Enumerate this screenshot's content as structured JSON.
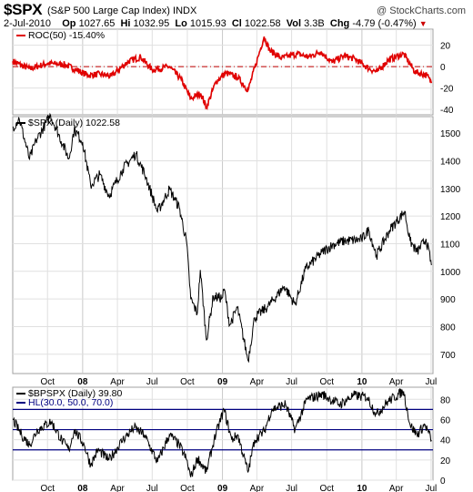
{
  "header": {
    "symbol": "$SPX",
    "description": "(S&P 500 Large Cap Index)",
    "exchange": "INDX",
    "watermark": "@ StockCharts.com",
    "date": "2-Jul-2010",
    "op_label": "Op",
    "op": "1027.65",
    "hi_label": "Hi",
    "hi": "1032.95",
    "lo_label": "Lo",
    "lo": "1015.93",
    "cl_label": "Cl",
    "cl": "1022.58",
    "vol_label": "Vol",
    "vol": "3.3B",
    "chg_label": "Chg",
    "chg": "-4.79 (-0.47%)"
  },
  "colors": {
    "roc": "#e00000",
    "price": "#000000",
    "bp": "#000000",
    "hl_lines": "#000080",
    "frame": "#a0a0a0",
    "grid": "#e0e0e0"
  },
  "chart_data": [
    {
      "type": "line",
      "panel": "roc",
      "legend": "ROC(50) -15.40%",
      "ylim": [
        -45,
        35
      ],
      "yticks": [
        "20",
        "0",
        "-20",
        "-40"
      ],
      "reference_line": 0,
      "series": [
        {
          "name": "ROC(50)",
          "points": [
            [
              "2007-07-02",
              5
            ],
            [
              "2007-08-15",
              -2
            ],
            [
              "2007-10-01",
              3
            ],
            [
              "2007-11-15",
              2
            ],
            [
              "2008-01-15",
              -8
            ],
            [
              "2008-02-15",
              -7
            ],
            [
              "2008-03-15",
              -9
            ],
            [
              "2008-05-01",
              5
            ],
            [
              "2008-06-01",
              9
            ],
            [
              "2008-07-01",
              -3
            ],
            [
              "2008-08-15",
              0
            ],
            [
              "2008-09-15",
              -12
            ],
            [
              "2008-10-10",
              -30
            ],
            [
              "2008-11-05",
              -25
            ],
            [
              "2008-11-20",
              -38
            ],
            [
              "2008-12-15",
              -14
            ],
            [
              "2009-01-10",
              -6
            ],
            [
              "2009-02-10",
              -10
            ],
            [
              "2009-03-09",
              -22
            ],
            [
              "2009-04-05",
              10
            ],
            [
              "2009-04-20",
              28
            ],
            [
              "2009-05-05",
              15
            ],
            [
              "2009-06-05",
              8
            ],
            [
              "2009-07-15",
              12
            ],
            [
              "2009-08-15",
              9
            ],
            [
              "2009-09-15",
              14
            ],
            [
              "2009-10-15",
              4
            ],
            [
              "2009-11-15",
              10
            ],
            [
              "2009-12-15",
              7
            ],
            [
              "2010-01-20",
              -2
            ],
            [
              "2010-02-10",
              -5
            ],
            [
              "2010-03-10",
              6
            ],
            [
              "2010-04-20",
              12
            ],
            [
              "2010-05-20",
              -5
            ],
            [
              "2010-06-20",
              -8
            ],
            [
              "2010-07-02",
              -15.4
            ]
          ]
        }
      ]
    },
    {
      "type": "line",
      "panel": "price",
      "legend": "$SPX (Daily) 1022.58",
      "ylim": [
        630,
        1560
      ],
      "yticks": [
        "1500",
        "1400",
        "1300",
        "1200",
        "1100",
        "1000",
        "900",
        "800",
        "700"
      ],
      "series": [
        {
          "name": "$SPX (Daily)",
          "points": [
            [
              "2007-07-02",
              1520
            ],
            [
              "2007-07-19",
              1553
            ],
            [
              "2007-08-15",
              1406
            ],
            [
              "2007-09-01",
              1473
            ],
            [
              "2007-10-09",
              1565
            ],
            [
              "2007-11-10",
              1460
            ],
            [
              "2007-11-26",
              1407
            ],
            [
              "2007-12-10",
              1515
            ],
            [
              "2008-01-01",
              1468
            ],
            [
              "2008-01-22",
              1310
            ],
            [
              "2008-02-15",
              1350
            ],
            [
              "2008-03-10",
              1273
            ],
            [
              "2008-04-15",
              1370
            ],
            [
              "2008-05-19",
              1426
            ],
            [
              "2008-06-15",
              1340
            ],
            [
              "2008-07-15",
              1215
            ],
            [
              "2008-08-15",
              1298
            ],
            [
              "2008-09-10",
              1230
            ],
            [
              "2008-09-29",
              1106
            ],
            [
              "2008-10-10",
              899
            ],
            [
              "2008-10-27",
              848
            ],
            [
              "2008-11-04",
              1005
            ],
            [
              "2008-11-20",
              752
            ],
            [
              "2008-12-08",
              909
            ],
            [
              "2008-12-31",
              903
            ],
            [
              "2009-01-06",
              935
            ],
            [
              "2009-01-20",
              805
            ],
            [
              "2009-02-09",
              869
            ],
            [
              "2009-03-09",
              677
            ],
            [
              "2009-03-26",
              832
            ],
            [
              "2009-04-30",
              873
            ],
            [
              "2009-06-12",
              946
            ],
            [
              "2009-07-10",
              880
            ],
            [
              "2009-08-07",
              1010
            ],
            [
              "2009-09-18",
              1068
            ],
            [
              "2009-10-19",
              1098
            ],
            [
              "2009-11-16",
              1110
            ],
            [
              "2009-12-31",
              1115
            ],
            [
              "2010-01-19",
              1150
            ],
            [
              "2010-02-08",
              1057
            ],
            [
              "2010-03-15",
              1150
            ],
            [
              "2010-04-23",
              1217
            ],
            [
              "2010-05-07",
              1110
            ],
            [
              "2010-05-25",
              1070
            ],
            [
              "2010-06-18",
              1117
            ],
            [
              "2010-07-02",
              1022.58
            ]
          ]
        }
      ],
      "x_ticks": [
        "Oct",
        "08",
        "Apr",
        "Jul",
        "Oct",
        "09",
        "Apr",
        "Jul",
        "Oct",
        "10",
        "Apr",
        "Jul"
      ]
    },
    {
      "type": "line",
      "panel": "bpspx",
      "legend": "$BPSPX (Daily) 39.80",
      "legend2": "HL(30.0, 50.0, 70.0)",
      "ylim": [
        0,
        92
      ],
      "yticks": [
        "80",
        "60",
        "40",
        "20",
        "0"
      ],
      "horizontal_lines": [
        30,
        50,
        70
      ],
      "series": [
        {
          "name": "$BPSPX (Daily)",
          "points": [
            [
              "2007-07-02",
              60
            ],
            [
              "2007-07-25",
              45
            ],
            [
              "2007-08-15",
              35
            ],
            [
              "2007-09-05",
              50
            ],
            [
              "2007-10-10",
              58
            ],
            [
              "2007-11-10",
              38
            ],
            [
              "2007-11-26",
              30
            ],
            [
              "2007-12-10",
              50
            ],
            [
              "2008-01-05",
              35
            ],
            [
              "2008-01-22",
              15
            ],
            [
              "2008-02-10",
              30
            ],
            [
              "2008-03-10",
              20
            ],
            [
              "2008-04-15",
              40
            ],
            [
              "2008-05-15",
              52
            ],
            [
              "2008-06-10",
              45
            ],
            [
              "2008-07-15",
              18
            ],
            [
              "2008-08-15",
              45
            ],
            [
              "2008-09-10",
              35
            ],
            [
              "2008-09-29",
              20
            ],
            [
              "2008-10-10",
              3
            ],
            [
              "2008-10-28",
              22
            ],
            [
              "2008-11-20",
              8
            ],
            [
              "2008-12-10",
              40
            ],
            [
              "2009-01-05",
              70
            ],
            [
              "2009-01-25",
              40
            ],
            [
              "2009-02-10",
              45
            ],
            [
              "2009-03-09",
              8
            ],
            [
              "2009-03-26",
              40
            ],
            [
              "2009-04-20",
              48
            ],
            [
              "2009-05-10",
              70
            ],
            [
              "2009-06-15",
              75
            ],
            [
              "2009-07-10",
              50
            ],
            [
              "2009-08-10",
              80
            ],
            [
              "2009-09-20",
              85
            ],
            [
              "2009-10-10",
              80
            ],
            [
              "2009-11-05",
              75
            ],
            [
              "2009-12-10",
              84
            ],
            [
              "2010-01-15",
              82
            ],
            [
              "2010-02-08",
              65
            ],
            [
              "2010-03-10",
              78
            ],
            [
              "2010-04-20",
              88
            ],
            [
              "2010-05-07",
              55
            ],
            [
              "2010-05-25",
              45
            ],
            [
              "2010-06-15",
              55
            ],
            [
              "2010-07-02",
              39.8
            ]
          ]
        }
      ],
      "x_ticks": [
        "Oct",
        "08",
        "Apr",
        "Jul",
        "Oct",
        "09",
        "Apr",
        "Jul",
        "Oct",
        "10",
        "Apr",
        "Jul"
      ]
    }
  ]
}
